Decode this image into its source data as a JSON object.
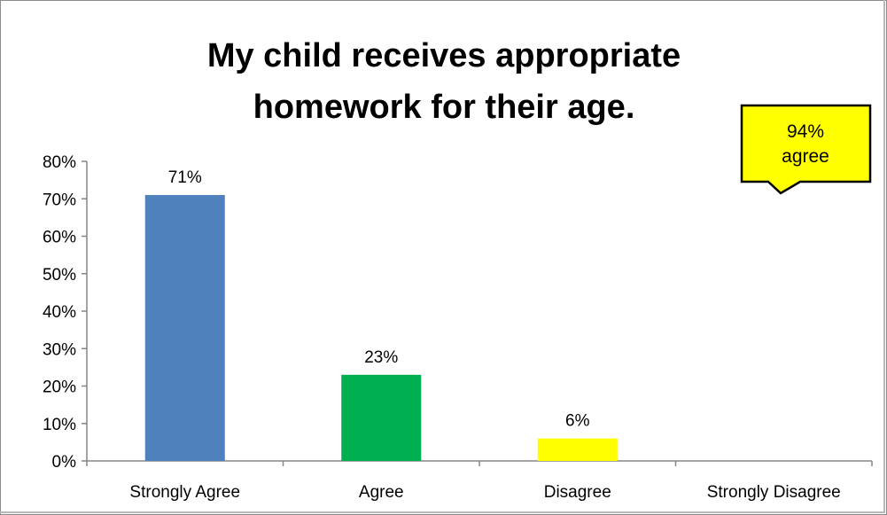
{
  "chart_data": {
    "type": "bar",
    "title_lines": [
      "My child receives appropriate",
      "homework for their age."
    ],
    "categories": [
      "Strongly Agree",
      "Agree",
      "Disagree",
      "Strongly Disagree"
    ],
    "values": [
      71,
      23,
      6,
      0
    ],
    "data_labels": [
      "71%",
      "23%",
      "6%",
      ""
    ],
    "bar_colors": [
      "#4F81BD",
      "#00B050",
      "#FFFF00",
      "#FFFFFF"
    ],
    "y_ticks": [
      "0%",
      "10%",
      "20%",
      "30%",
      "40%",
      "50%",
      "60%",
      "70%",
      "80%"
    ],
    "ylim": [
      0,
      80
    ],
    "grid": false,
    "legend": "none",
    "callout": {
      "lines": [
        "94%",
        "agree"
      ],
      "fill": "#FFFF00"
    }
  }
}
